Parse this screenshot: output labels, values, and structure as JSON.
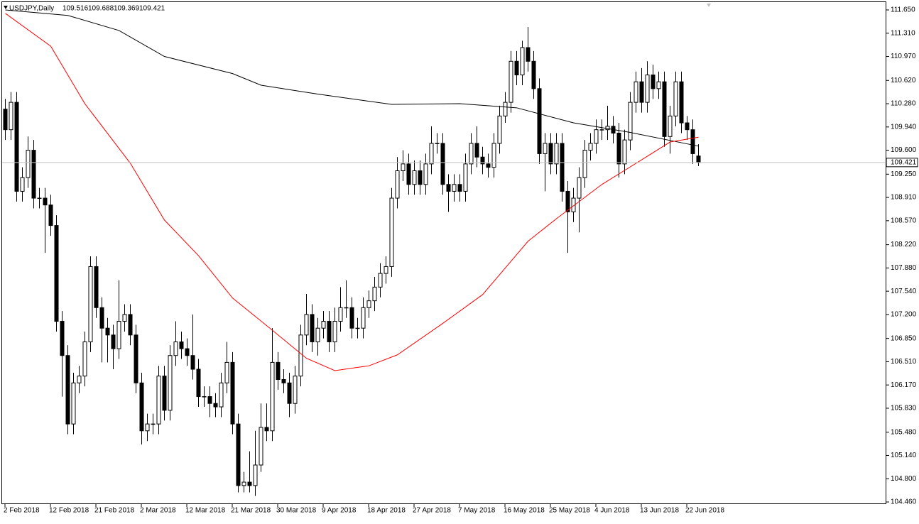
{
  "chart_data": {
    "type": "candlestick",
    "title": "USDJPY,Daily",
    "categories": [
      "2 Feb 2018",
      null,
      null,
      null,
      null,
      null,
      null,
      null,
      "12 Feb 2018",
      null,
      null,
      null,
      null,
      null,
      null,
      null,
      "21 Feb 2018",
      null,
      null,
      null,
      null,
      null,
      null,
      null,
      "2 Mar 2018",
      null,
      null,
      null,
      null,
      null,
      null,
      null,
      "12 Mar 2018",
      null,
      null,
      null,
      null,
      null,
      null,
      null,
      "21 Mar 2018",
      null,
      null,
      null,
      null,
      null,
      null,
      null,
      "30 Mar 2018",
      null,
      null,
      null,
      null,
      null,
      null,
      null,
      "9 Apr 2018",
      null,
      null,
      null,
      null,
      null,
      null,
      null,
      "18 Apr 2018",
      null,
      null,
      null,
      null,
      null,
      null,
      null,
      "27 Apr 2018",
      null,
      null,
      null,
      null,
      null,
      null,
      null,
      "7 May 2018",
      null,
      null,
      null,
      null,
      null,
      null,
      null,
      "16 May 2018",
      null,
      null,
      null,
      null,
      null,
      null,
      null,
      "25 May 2018",
      null,
      null,
      null,
      null,
      null,
      null,
      null,
      "4 Jun 2018",
      null,
      null,
      null,
      null,
      null,
      null,
      null,
      "13 Jun 2018",
      null,
      null,
      null,
      null,
      null,
      null,
      null,
      "22 Jun 2018",
      null,
      null
    ],
    "open": [
      110.2,
      109.9,
      110.3,
      109.0,
      109.2,
      109.6,
      108.9,
      108.9,
      108.8,
      108.5,
      107.1,
      106.6,
      105.6,
      106.2,
      106.3,
      106.8,
      107.9,
      107.3,
      107.0,
      106.9,
      106.7,
      107.1,
      107.2,
      106.9,
      106.2,
      105.5,
      105.6,
      105.6,
      106.3,
      105.8,
      106.6,
      106.8,
      106.7,
      106.6,
      106.4,
      106.0,
      106.0,
      105.9,
      105.85,
      106.2,
      106.5,
      105.6,
      104.7,
      104.75,
      104.7,
      105.0,
      105.55,
      105.5,
      106.5,
      106.25,
      106.2,
      105.9,
      106.3,
      106.9,
      107.2,
      106.8,
      107.0,
      107.1,
      106.8,
      107.1,
      107.3,
      107.3,
      107.0,
      107.0,
      107.3,
      107.4,
      107.6,
      107.8,
      107.9,
      108.9,
      109.3,
      109.4,
      109.1,
      109.3,
      109.1,
      109.4,
      109.7,
      109.7,
      109.1,
      109.0,
      109.1,
      109.0,
      109.4,
      109.7,
      109.5,
      109.4,
      109.35,
      109.7,
      110.1,
      110.3,
      110.9,
      110.7,
      111.1,
      110.9,
      110.5,
      109.55,
      109.7,
      109.4,
      109.7,
      109.0,
      108.7,
      108.9,
      109.2,
      109.6,
      109.7,
      109.9,
      109.9,
      109.95,
      109.85,
      109.4,
      109.75,
      110.3,
      110.6,
      110.3,
      110.7,
      110.5,
      110.6,
      109.8,
      110.1,
      110.6,
      110.0,
      109.9,
      109.516
    ],
    "high": [
      110.35,
      110.45,
      110.45,
      109.35,
      109.8,
      109.75,
      109.05,
      109.05,
      108.95,
      108.65,
      107.25,
      106.75,
      106.35,
      106.45,
      106.95,
      108.05,
      108.05,
      107.45,
      107.15,
      107.05,
      107.7,
      107.35,
      107.35,
      107.05,
      106.35,
      105.75,
      105.75,
      106.45,
      106.45,
      106.75,
      107.1,
      106.95,
      106.85,
      107.2,
      106.55,
      106.15,
      106.15,
      106.05,
      106.35,
      106.8,
      106.65,
      105.75,
      104.9,
      105.2,
      105.5,
      105.9,
      105.9,
      107.0,
      106.65,
      106.4,
      106.35,
      106.45,
      107.05,
      107.5,
      107.35,
      107.15,
      107.25,
      107.25,
      107.3,
      107.6,
      107.7,
      107.45,
      107.15,
      107.45,
      107.55,
      107.75,
      107.95,
      108.05,
      109.05,
      109.5,
      109.6,
      109.55,
      109.45,
      109.45,
      109.55,
      109.95,
      109.85,
      109.85,
      109.25,
      109.25,
      109.25,
      109.55,
      109.85,
      109.95,
      109.65,
      109.55,
      109.85,
      110.25,
      110.45,
      111.05,
      111.05,
      111.2,
      111.4,
      111.05,
      110.65,
      109.85,
      109.85,
      109.85,
      109.85,
      109.15,
      109.05,
      109.35,
      109.75,
      109.85,
      110.05,
      110.05,
      110.25,
      110.1,
      110.0,
      109.9,
      110.45,
      110.75,
      110.8,
      110.9,
      110.85,
      110.75,
      110.75,
      110.25,
      110.75,
      110.75,
      110.1,
      110.05,
      109.688
    ],
    "low": [
      109.75,
      109.75,
      108.85,
      108.85,
      109.05,
      108.75,
      108.75,
      108.1,
      108.35,
      106.95,
      106.0,
      105.45,
      105.45,
      106.05,
      106.15,
      106.65,
      107.15,
      106.5,
      106.5,
      106.4,
      106.55,
      106.95,
      106.75,
      106.05,
      105.3,
      105.35,
      105.45,
      105.45,
      105.65,
      105.65,
      106.45,
      106.55,
      106.45,
      106.25,
      105.85,
      105.85,
      105.7,
      105.7,
      105.7,
      106.05,
      105.45,
      104.6,
      104.6,
      104.6,
      104.55,
      104.9,
      105.35,
      105.35,
      106.1,
      106.05,
      105.7,
      105.75,
      106.15,
      106.75,
      106.65,
      106.6,
      106.85,
      106.65,
      106.65,
      106.95,
      107.15,
      106.85,
      106.85,
      106.85,
      107.15,
      107.25,
      107.45,
      107.65,
      107.75,
      108.75,
      109.15,
      108.95,
      108.95,
      108.95,
      108.95,
      109.25,
      109.55,
      108.95,
      108.7,
      108.85,
      108.85,
      108.85,
      109.25,
      109.35,
      109.25,
      109.2,
      109.2,
      109.55,
      110.0,
      110.15,
      110.55,
      110.55,
      110.75,
      110.35,
      109.4,
      109.0,
      109.25,
      109.25,
      108.85,
      108.1,
      108.55,
      108.4,
      109.05,
      109.45,
      109.55,
      109.75,
      109.75,
      109.7,
      109.2,
      109.25,
      109.6,
      110.15,
      110.15,
      110.15,
      110.35,
      110.35,
      109.65,
      109.55,
      109.95,
      109.85,
      109.75,
      109.4,
      109.369
    ],
    "close": [
      109.9,
      110.3,
      109.0,
      109.2,
      109.6,
      108.9,
      108.9,
      108.8,
      108.5,
      107.1,
      106.6,
      105.6,
      106.2,
      106.3,
      106.8,
      107.9,
      107.3,
      107.0,
      106.9,
      106.7,
      107.1,
      107.2,
      106.9,
      106.2,
      105.5,
      105.6,
      105.6,
      106.3,
      105.8,
      106.6,
      106.8,
      106.7,
      106.6,
      106.4,
      106.0,
      106.0,
      105.9,
      105.85,
      106.2,
      106.5,
      105.6,
      104.7,
      104.75,
      104.7,
      105.0,
      105.55,
      105.5,
      106.5,
      106.25,
      106.2,
      105.9,
      106.3,
      106.9,
      107.2,
      106.8,
      107.0,
      107.1,
      106.8,
      107.1,
      107.3,
      107.3,
      107.0,
      107.0,
      107.3,
      107.4,
      107.6,
      107.8,
      107.9,
      108.9,
      109.3,
      109.4,
      109.1,
      109.3,
      109.1,
      109.4,
      109.7,
      109.7,
      109.1,
      109.0,
      109.1,
      109.0,
      109.4,
      109.7,
      109.5,
      109.4,
      109.35,
      109.7,
      110.1,
      110.3,
      110.9,
      110.7,
      111.1,
      110.9,
      110.5,
      109.55,
      109.7,
      109.4,
      109.7,
      109.0,
      108.7,
      108.9,
      109.2,
      109.6,
      109.7,
      109.9,
      109.9,
      109.95,
      109.85,
      109.4,
      109.75,
      110.3,
      110.6,
      110.3,
      110.7,
      110.5,
      110.6,
      109.8,
      110.1,
      110.6,
      110.0,
      109.9,
      109.55,
      109.421
    ],
    "series": [
      {
        "color": "#000000",
        "x": [
          0,
          11,
          20,
          28,
          40,
          45,
          55,
          68,
          80,
          90,
          100,
          110,
          122
        ],
        "values": [
          111.65,
          111.57,
          111.35,
          110.97,
          110.72,
          110.55,
          110.42,
          110.27,
          110.28,
          110.22,
          110.0,
          109.86,
          109.66
        ]
      },
      {
        "color": "#ff0000",
        "x": [
          0,
          8,
          14,
          22,
          28,
          34,
          40,
          47,
          53,
          58,
          64,
          69,
          77,
          84,
          92,
          97,
          105,
          112,
          117,
          122
        ],
        "values": [
          111.6,
          111.12,
          110.28,
          109.41,
          108.58,
          108.06,
          107.44,
          106.97,
          106.56,
          106.38,
          106.45,
          106.61,
          107.07,
          107.49,
          108.27,
          108.6,
          109.1,
          109.46,
          109.72,
          109.79
        ]
      }
    ],
    "ylim": [
      104.46,
      111.65
    ],
    "yticks": [
      {
        "value": 111.65,
        "label": "111.650"
      },
      {
        "value": 111.31,
        "label": "111.310"
      },
      {
        "value": 110.97,
        "label": "110.970"
      },
      {
        "value": 110.62,
        "label": "110.620"
      },
      {
        "value": 110.28,
        "label": "110.280"
      },
      {
        "value": 109.94,
        "label": "109.940"
      },
      {
        "value": 109.6,
        "label": "109.600"
      },
      {
        "value": 109.25,
        "label": "109.250"
      },
      {
        "value": 108.91,
        "label": "108.910"
      },
      {
        "value": 108.57,
        "label": "108.570"
      },
      {
        "value": 108.22,
        "label": "108.220"
      },
      {
        "value": 107.88,
        "label": "107.880"
      },
      {
        "value": 107.54,
        "label": "107.540"
      },
      {
        "value": 107.2,
        "label": "107.200"
      },
      {
        "value": 106.85,
        "label": "106.850"
      },
      {
        "value": 106.51,
        "label": "106.510"
      },
      {
        "value": 106.17,
        "label": "106.170"
      },
      {
        "value": 105.83,
        "label": "105.830"
      },
      {
        "value": 105.48,
        "label": "105.480"
      },
      {
        "value": 105.14,
        "label": "105.140"
      },
      {
        "value": 104.8,
        "label": "104.800"
      },
      {
        "value": 104.46,
        "label": "104.460"
      }
    ],
    "up_color": "#ffffff",
    "down_color": "#000000"
  }
}
